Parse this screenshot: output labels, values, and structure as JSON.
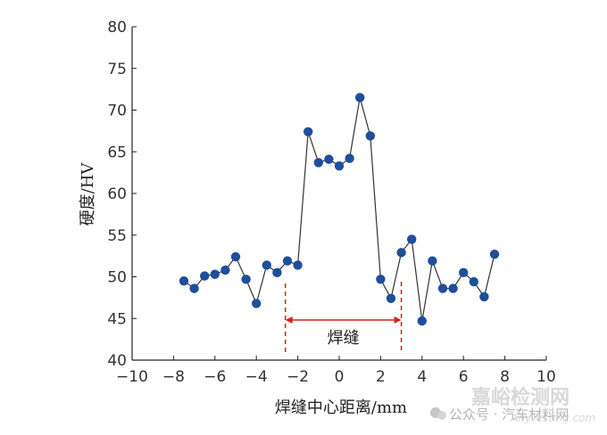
{
  "chart_data": {
    "type": "line",
    "title": "",
    "xlabel": "焊缝中心距离/mm",
    "ylabel": "硬度/HV",
    "xlim": [
      -10,
      10
    ],
    "ylim": [
      40,
      80
    ],
    "x_ticks": [
      "−10",
      "−8",
      "−6",
      "−4",
      "−2",
      "0",
      "2",
      "4",
      "6",
      "8",
      "10"
    ],
    "y_ticks": [
      "40",
      "45",
      "50",
      "55",
      "60",
      "65",
      "70",
      "75",
      "80"
    ],
    "grid": false,
    "series": [
      {
        "x": [
          -7.5,
          -7.0,
          -6.5,
          -6.0,
          -5.5,
          -5.0,
          -4.5,
          -4.0,
          -3.5,
          -3.0,
          -2.5,
          -2.0,
          -1.5,
          -1.0,
          -0.5,
          0.0,
          0.5,
          1.0,
          1.5,
          2.0,
          2.5,
          3.0,
          3.5,
          4.0,
          4.5,
          5.0,
          5.5,
          6.0,
          6.5,
          7.0,
          7.5
        ],
        "y": [
          49.5,
          48.6,
          50.1,
          50.3,
          50.8,
          52.4,
          49.7,
          46.8,
          51.4,
          50.5,
          51.9,
          51.4,
          67.4,
          63.7,
          64.1,
          63.3,
          64.2,
          71.5,
          66.9,
          49.7,
          47.4,
          52.9,
          54.5,
          44.7,
          51.9,
          48.6,
          48.6,
          50.5,
          49.4,
          47.6,
          52.7
        ],
        "color": "#1f4e9a"
      }
    ],
    "annotation": {
      "label": "焊缝",
      "x_start": -2.6,
      "x_end": 3.0,
      "color": "#d62020"
    }
  },
  "watermark": {
    "brand": "嘉峪检测网",
    "domain": "AnyTesting.com",
    "account": "公众号 · 汽车材料网"
  }
}
